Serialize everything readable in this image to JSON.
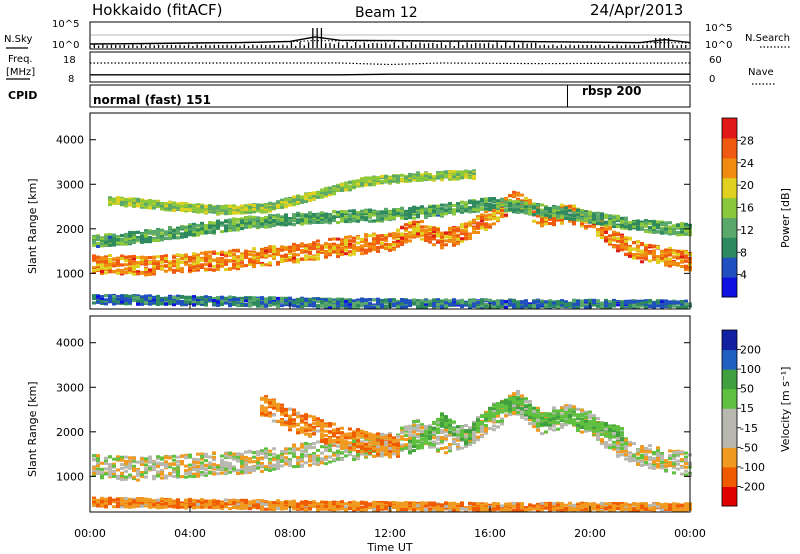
{
  "header": {
    "station": "Hokkaido (fitACF)",
    "beam": "Beam 12",
    "date": "24/Apr/2013"
  },
  "colors": {
    "power_scale": [
      "#1010e0",
      "#2050c0",
      "#2e8a5e",
      "#5aa86a",
      "#8cc83c",
      "#e0d020",
      "#f08a10",
      "#f05a10",
      "#e01818"
    ],
    "velocity_scale": [
      "#e00000",
      "#f05a00",
      "#f09a20",
      "#b8b8b0",
      "#b8b8b0",
      "#60c040",
      "#40a040",
      "#2060c0",
      "#1020a0"
    ]
  },
  "chart_data": [
    {
      "type": "line",
      "panel": "sky-noise",
      "left_label": "N.Sky",
      "right_label": "N.Search",
      "left_ticks": [
        "10^5",
        "10^0"
      ],
      "right_ticks": [
        "10^5",
        "10^0"
      ],
      "x_hours": [
        0,
        2,
        4,
        6,
        8,
        9,
        10,
        12,
        14,
        16,
        18,
        20,
        22,
        23,
        24
      ],
      "series": [
        {
          "values": [
            1,
            1.2,
            1.6,
            2,
            3.5,
            30,
            6,
            5,
            4,
            4,
            3,
            2.5,
            2,
            8,
            2
          ]
        },
        {
          "values": [
            0.8,
            1,
            1.4,
            1.8,
            3,
            5,
            4.5,
            4,
            3.5,
            3.5,
            2.8,
            2.2,
            1.8,
            2,
            1.6
          ]
        }
      ]
    },
    {
      "type": "line",
      "panel": "frequency-nave",
      "left_label_top": "Freq.",
      "left_label_bottom": "[MHz]",
      "left_ticks": [
        "18",
        "8"
      ],
      "right_label": "Nave",
      "right_ticks": [
        "60",
        "0"
      ],
      "x_hours": [
        0,
        10,
        12,
        14,
        18,
        24
      ],
      "series": [
        {
          "values": [
            10.4,
            10.4,
            10.6,
            10.6,
            10.6,
            10.6
          ]
        },
        {
          "values": [
            12,
            12,
            11.5,
            12,
            11.8,
            12
          ]
        }
      ]
    },
    {
      "type": "table",
      "panel": "cpid",
      "label": "CPID",
      "segments": [
        {
          "name": "normal (fast) 151",
          "start_hour": 0,
          "end_hour": 19.1
        },
        {
          "name": "rbsp 200",
          "start_hour": 19.1,
          "end_hour": 24
        }
      ]
    },
    {
      "type": "heatmap",
      "panel": "power",
      "ylabel": "Slant Range [km]",
      "y_ticks": [
        1000,
        2000,
        3000,
        4000
      ],
      "ylim": [
        200,
        4600
      ],
      "xlim": [
        0,
        24
      ],
      "colorbar_label": "Power [dB]",
      "colorbar_ticks": [
        4,
        8,
        12,
        16,
        20,
        24,
        28
      ],
      "colorbar_range": [
        0,
        32
      ],
      "scatter_bands": [
        {
          "hours": [
            0,
            2,
            4,
            6,
            8,
            10,
            11,
            12,
            13,
            14,
            15,
            16,
            17,
            18,
            19,
            20,
            21,
            22,
            23,
            24
          ],
          "centers": [
            1250,
            1200,
            1280,
            1350,
            1480,
            1620,
            1700,
            1750,
            2050,
            1800,
            1950,
            2300,
            2700,
            2250,
            2400,
            2200,
            1750,
            1500,
            1400,
            1300
          ],
          "width_km": 420,
          "level_db": 24
        },
        {
          "hours": [
            0,
            2,
            4,
            6,
            8,
            10,
            12,
            14,
            16,
            18,
            20,
            22,
            24
          ],
          "centers": [
            1750,
            1850,
            2000,
            2150,
            2250,
            2300,
            2350,
            2450,
            2600,
            2450,
            2300,
            2100,
            2000
          ],
          "width_km": 260,
          "level_db": 12
        },
        {
          "hours": [
            1,
            3,
            5,
            7,
            9,
            11,
            13,
            15
          ],
          "centers": [
            2650,
            2550,
            2450,
            2500,
            2800,
            3100,
            3200,
            3250
          ],
          "width_km": 180,
          "level_db": 16
        },
        {
          "hours": [
            0,
            4,
            8,
            12,
            16,
            20,
            24
          ],
          "centers": [
            450,
            420,
            380,
            350,
            340,
            330,
            320
          ],
          "width_km": 200,
          "level_db": 8
        }
      ]
    },
    {
      "type": "heatmap",
      "panel": "velocity",
      "ylabel": "Slant Range [km]",
      "y_ticks": [
        1000,
        2000,
        3000,
        4000
      ],
      "ylim": [
        200,
        4600
      ],
      "xlim": [
        0,
        24
      ],
      "xlabel": "Time UT",
      "x_ticks": [
        "00:00",
        "04:00",
        "08:00",
        "12:00",
        "16:00",
        "20:00",
        "00:00"
      ],
      "colorbar_label": "Velocity [m s⁻¹]",
      "colorbar_ticks": [
        -200,
        -100,
        -50,
        -15,
        15,
        50,
        100,
        200
      ],
      "scatter_bands": [
        {
          "hours": [
            0,
            2,
            4,
            6,
            8,
            10,
            11,
            12,
            13,
            14,
            15,
            16,
            17,
            18,
            19,
            20,
            21,
            22,
            23,
            24
          ],
          "centers": [
            1250,
            1200,
            1280,
            1350,
            1480,
            1620,
            1700,
            1750,
            2050,
            1800,
            1950,
            2300,
            2700,
            2250,
            2400,
            2200,
            1750,
            1500,
            1400,
            1300
          ],
          "width_km": 520,
          "level_ms": 0
        },
        {
          "hours": [
            7,
            8,
            9,
            10,
            11,
            12
          ],
          "centers": [
            2600,
            2300,
            2100,
            1900,
            1800,
            1700
          ],
          "width_km": 500,
          "level_ms": -40
        },
        {
          "hours": [
            13,
            14,
            15,
            16,
            17,
            18,
            19,
            20,
            21
          ],
          "centers": [
            1700,
            2300,
            1900,
            2500,
            2700,
            2300,
            2400,
            2200,
            2000
          ],
          "width_km": 300,
          "level_ms": 40
        },
        {
          "hours": [
            0,
            4,
            8,
            12,
            16,
            20,
            24
          ],
          "centers": [
            450,
            420,
            380,
            350,
            340,
            330,
            320
          ],
          "width_km": 200,
          "level_ms": -40
        }
      ]
    }
  ]
}
